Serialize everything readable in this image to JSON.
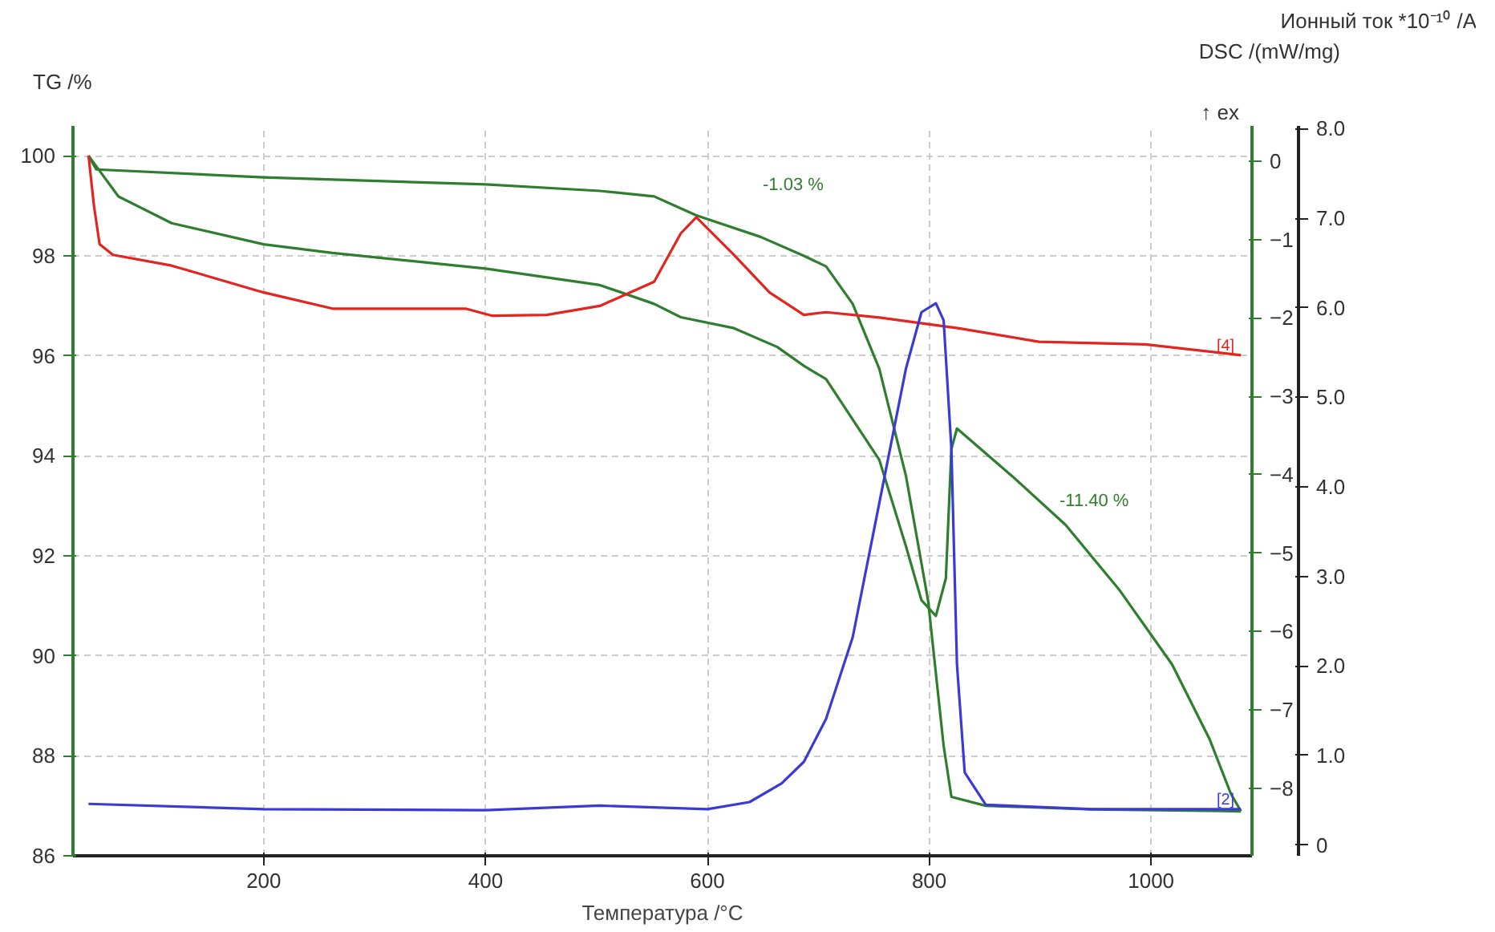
{
  "chart_data": {
    "type": "line",
    "xlabel": "Температура /°C",
    "ylabel": "TG /%",
    "y2label": "DSC /(mW/mg)",
    "y3label": "Ионный ток *10⁻¹⁰ /A",
    "xlim": [
      28,
      1091
    ],
    "xticks": [
      200,
      400,
      600,
      800,
      1000
    ],
    "ylim": [
      86,
      100.6
    ],
    "yticks": [
      86,
      88,
      90,
      92,
      94,
      96,
      98,
      100
    ],
    "y2lim": [
      -8.86,
      0.45
    ],
    "y2ticks": [
      -8,
      -7,
      -6,
      -5,
      -4,
      -3,
      -2,
      -1,
      0
    ],
    "y3lim": [
      -0.12,
      8.03
    ],
    "y3ticks": [
      0,
      {
        "value": 1,
        "label": "1.0"
      },
      {
        "value": 2,
        "label": "2.0"
      },
      {
        "value": 3,
        "label": "3.0"
      },
      {
        "value": 4,
        "label": "4.0"
      },
      {
        "value": 5,
        "label": "5.0"
      },
      {
        "value": 6,
        "label": "6.0"
      },
      {
        "value": 7,
        "label": "7.0"
      },
      {
        "value": 8,
        "label": "8.0"
      }
    ],
    "grid": true,
    "series": [
      {
        "color": "#2f7d2f",
        "axis": "y",
        "x": [
          42,
          49,
          200,
          400,
          503,
          552,
          590,
          648,
          687,
          707,
          731,
          755,
          779,
          799,
          813,
          820,
          851,
          947,
          1081
        ],
        "values": [
          100,
          99.73,
          99.57,
          99.43,
          99.3,
          99.19,
          98.81,
          98.38,
          98.0,
          97.79,
          97.04,
          95.74,
          93.6,
          91.1,
          88.2,
          87.18,
          87.0,
          86.93,
          86.89
        ]
      },
      {
        "color": "#2f7d2f",
        "axis": "y2",
        "x": [
          42,
          69,
          117,
          200,
          262,
          400,
          503,
          552,
          576,
          624,
          663,
          687,
          707,
          755,
          779,
          793,
          806,
          815,
          820,
          825,
          875,
          923,
          971,
          1019,
          1053,
          1072,
          1081
        ],
        "values": [
          0.07,
          -0.45,
          -0.79,
          -1.06,
          -1.17,
          -1.37,
          -1.58,
          -1.82,
          -1.99,
          -2.13,
          -2.37,
          -2.61,
          -2.78,
          -3.81,
          -4.91,
          -5.6,
          -5.8,
          -5.32,
          -3.67,
          -3.41,
          -4.02,
          -4.64,
          -5.46,
          -6.42,
          -7.38,
          -8.07,
          -8.29
        ]
      },
      {
        "name": "[4]",
        "color": "#e3241f",
        "axis": "y3",
        "x": [
          42,
          47,
          52,
          64,
          117,
          200,
          262,
          334,
          382,
          406,
          455,
          503,
          552,
          576,
          590,
          624,
          656,
          687,
          707,
          755,
          827,
          899,
          995,
          1081
        ],
        "values": [
          7.7,
          7.13,
          6.71,
          6.59,
          6.47,
          6.17,
          5.99,
          5.99,
          5.99,
          5.91,
          5.92,
          6.02,
          6.29,
          6.83,
          7.01,
          6.59,
          6.17,
          5.92,
          5.95,
          5.89,
          5.77,
          5.62,
          5.59,
          5.47
        ]
      },
      {
        "name": "[2]",
        "color": "#3a3ad6",
        "axis": "y3",
        "x": [
          42,
          200,
          400,
          503,
          600,
          638,
          667,
          687,
          707,
          731,
          755,
          779,
          793,
          806,
          813,
          820,
          825,
          832,
          851,
          947,
          1081
        ],
        "values": [
          0.46,
          0.4,
          0.39,
          0.44,
          0.4,
          0.48,
          0.69,
          0.93,
          1.41,
          2.32,
          3.82,
          5.32,
          5.95,
          6.05,
          5.86,
          4.42,
          2.02,
          0.81,
          0.45,
          0.4,
          0.4
        ]
      }
    ],
    "annotations": [
      "-1.03 %",
      "-11.40 %",
      "↑ ex"
    ]
  }
}
